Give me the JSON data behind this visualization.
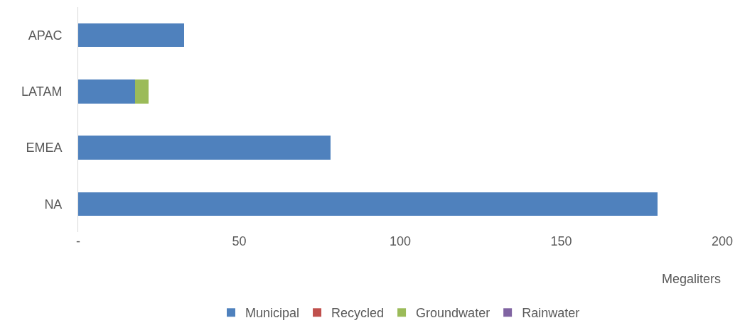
{
  "chart_data": {
    "type": "bar",
    "orientation": "horizontal",
    "stacked": true,
    "categories": [
      "APAC",
      "LATAM",
      "EMEA",
      "NA"
    ],
    "series": [
      {
        "name": "Municipal",
        "color": "#4f81bd",
        "values": [
          33,
          17.6,
          78.4,
          180
        ]
      },
      {
        "name": "Recycled",
        "color": "#c0504d",
        "values": [
          0,
          0,
          0,
          0
        ]
      },
      {
        "name": "Groundwater",
        "color": "#9bbb59",
        "values": [
          0,
          4.2,
          0,
          0
        ]
      },
      {
        "name": "Rainwater",
        "color": "#8064a2",
        "values": [
          0,
          0,
          0,
          0
        ]
      }
    ],
    "xlim": [
      0,
      200
    ],
    "xticks": [
      {
        "value": 0,
        "label": "-"
      },
      50,
      100,
      150,
      200
    ],
    "xlabel": "Megaliters",
    "legend": "bottom"
  }
}
